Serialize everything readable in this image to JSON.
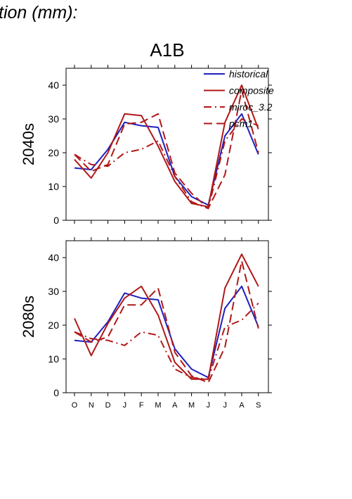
{
  "header": {
    "title": "tion (mm):",
    "scenario": "A1B"
  },
  "chart_data": [
    {
      "type": "line",
      "panel": "2040s",
      "ylabel": "2040s",
      "categories": [
        "O",
        "N",
        "D",
        "J",
        "F",
        "M",
        "A",
        "M",
        "J",
        "J",
        "A",
        "S"
      ],
      "ylim": [
        0,
        45
      ],
      "yticks": [
        0,
        10,
        20,
        30,
        40
      ],
      "legend": {
        "placement": "top-right"
      },
      "series": [
        {
          "name": "historical",
          "color": "#1f1fbf",
          "dash": "solid",
          "values": [
            15.5,
            15,
            21,
            29,
            28,
            27.5,
            13,
            7,
            4.5,
            25,
            31.5,
            19.5
          ]
        },
        {
          "name": "composite",
          "color": "#b01818",
          "dash": "solid",
          "values": [
            18,
            12.5,
            20,
            31.5,
            31,
            22,
            11.5,
            5,
            4,
            29,
            40,
            27
          ]
        },
        {
          "name": "miroc_3.2",
          "color": "#b01818",
          "dash": "dashdot",
          "values": [
            19.5,
            16.5,
            16,
            20,
            21,
            23.5,
            13,
            5.5,
            3.5,
            23.5,
            30,
            28
          ]
        },
        {
          "name": "pcm1",
          "color": "#b01818",
          "dash": "dashed",
          "values": [
            19.5,
            14.5,
            16.5,
            28.5,
            29,
            31.5,
            14,
            8,
            3.5,
            13.5,
            38.5,
            20
          ]
        }
      ]
    },
    {
      "type": "line",
      "panel": "2080s",
      "ylabel": "2080s",
      "categories": [
        "O",
        "N",
        "D",
        "J",
        "F",
        "M",
        "A",
        "M",
        "J",
        "J",
        "A",
        "S"
      ],
      "ylim": [
        0,
        45
      ],
      "yticks": [
        0,
        10,
        20,
        30,
        40
      ],
      "series": [
        {
          "name": "historical",
          "color": "#1f1fbf",
          "dash": "solid",
          "values": [
            15.5,
            15,
            21,
            29.5,
            28,
            27.5,
            13,
            7,
            4.5,
            25,
            31.5,
            19.5
          ]
        },
        {
          "name": "composite",
          "color": "#b01818",
          "dash": "solid",
          "values": [
            22,
            11,
            20.5,
            28,
            31.5,
            23,
            9,
            4,
            4,
            31,
            41,
            31.5
          ]
        },
        {
          "name": "miroc_3.2",
          "color": "#b01818",
          "dash": "dashdot",
          "values": [
            18,
            16,
            15.5,
            14,
            18,
            17,
            7,
            4.5,
            4,
            19.5,
            21.5,
            26.5
          ]
        },
        {
          "name": "pcm1",
          "color": "#b01818",
          "dash": "dashed",
          "values": [
            18,
            15,
            16.5,
            26,
            26,
            31,
            12,
            5,
            3,
            13.5,
            39,
            19
          ]
        }
      ]
    }
  ]
}
